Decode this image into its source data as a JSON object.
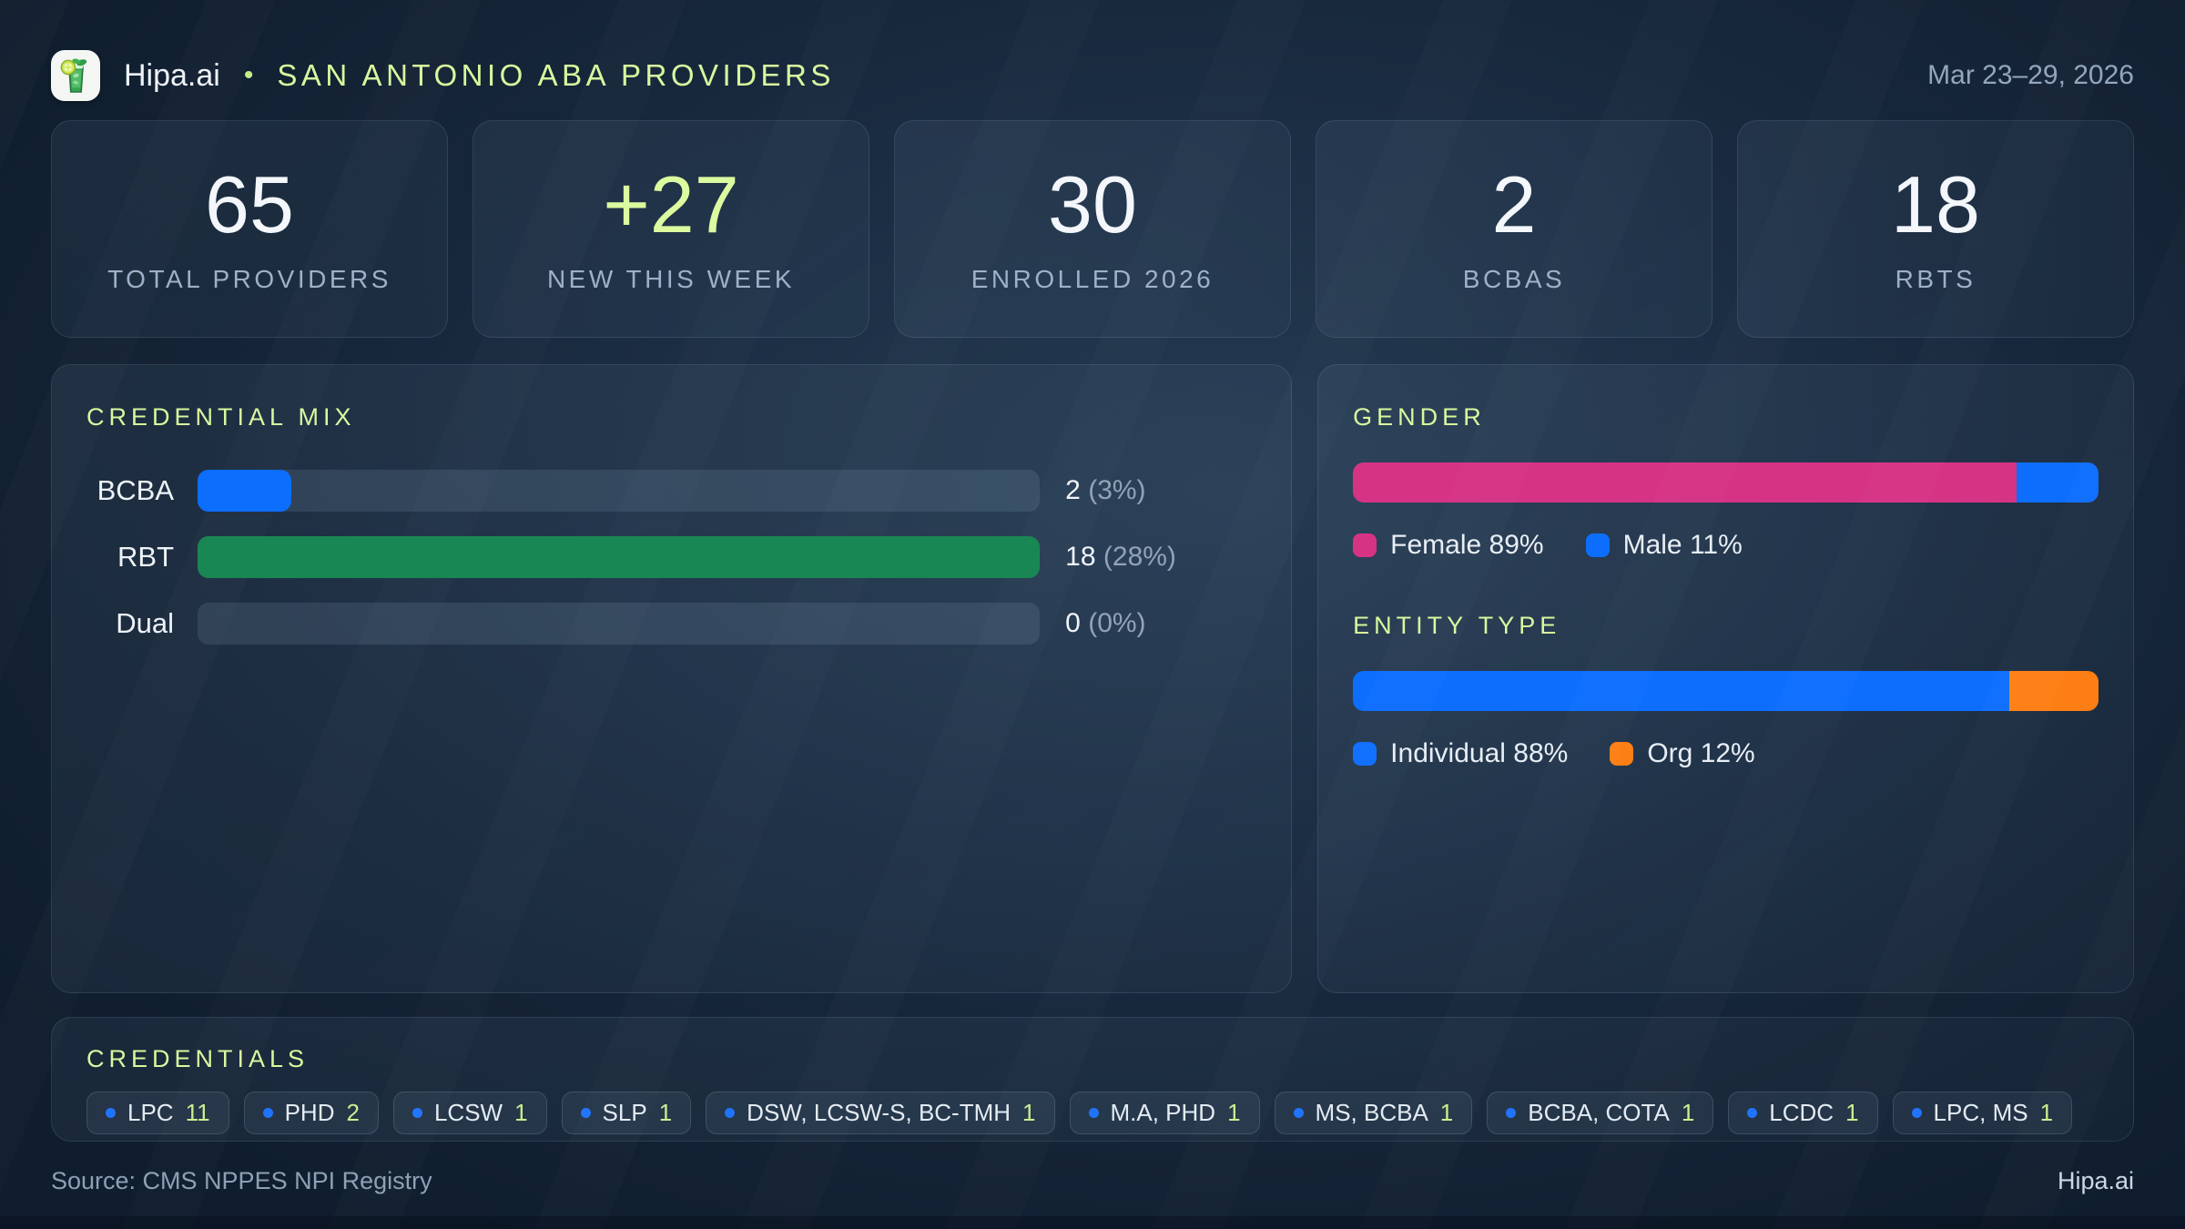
{
  "theme": {
    "accent_lime": "#d9f89e",
    "blue": "#0d6efd",
    "green": "#198754",
    "pink": "#d63384",
    "orange": "#fd7e14"
  },
  "header": {
    "brand": "Hipa.ai",
    "separator": "•",
    "title": "SAN ANTONIO ABA PROVIDERS",
    "date_range": "Mar 23–29, 2026",
    "logo_icon": "mojito-glass-icon"
  },
  "stats": [
    {
      "value": "65",
      "label": "TOTAL PROVIDERS"
    },
    {
      "value": "+27",
      "label": "NEW THIS WEEK",
      "accent": true
    },
    {
      "value": "30",
      "label": "ENROLLED 2026"
    },
    {
      "value": "2",
      "label": "BCBAS"
    },
    {
      "value": "18",
      "label": "RBTS"
    }
  ],
  "credential_mix": {
    "title": "CREDENTIAL MIX",
    "rows": [
      {
        "label": "BCBA",
        "count": "2",
        "pct": "(3%)",
        "bar_pct": 11.1,
        "color": "#0d6efd"
      },
      {
        "label": "RBT",
        "count": "18",
        "pct": "(28%)",
        "bar_pct": 100,
        "color": "#198754"
      },
      {
        "label": "Dual",
        "count": "0",
        "pct": "(0%)",
        "bar_pct": 0,
        "color": "#0d6efd"
      }
    ]
  },
  "gender": {
    "title": "GENDER",
    "segments": [
      {
        "name": "Female",
        "pct": 89,
        "color": "#d63384"
      },
      {
        "name": "Male",
        "pct": 11,
        "color": "#0d6efd"
      }
    ],
    "legend": [
      "Female 89%",
      "Male 11%"
    ]
  },
  "entity_type": {
    "title": "ENTITY TYPE",
    "segments": [
      {
        "name": "Individual",
        "pct": 88,
        "color": "#0d6efd"
      },
      {
        "name": "Org",
        "pct": 12,
        "color": "#fd7e14"
      }
    ],
    "legend": [
      "Individual 88%",
      "Org 12%"
    ]
  },
  "credentials": {
    "title": "CREDENTIALS",
    "chips": [
      {
        "label": "LPC",
        "count": "11"
      },
      {
        "label": "PHD",
        "count": "2"
      },
      {
        "label": "LCSW",
        "count": "1"
      },
      {
        "label": "SLP",
        "count": "1"
      },
      {
        "label": "DSW, LCSW-S, BC-TMH",
        "count": "1"
      },
      {
        "label": "M.A, PHD",
        "count": "1"
      },
      {
        "label": "MS, BCBA",
        "count": "1"
      },
      {
        "label": "BCBA, COTA",
        "count": "1"
      },
      {
        "label": "LCDC",
        "count": "1"
      },
      {
        "label": "LPC, MS",
        "count": "1"
      }
    ]
  },
  "footer": {
    "source": "Source: CMS NPPES NPI Registry",
    "brand": "Hipa.ai"
  },
  "chart_data": [
    {
      "type": "bar",
      "orientation": "horizontal",
      "title": "CREDENTIAL MIX",
      "categories": [
        "BCBA",
        "RBT",
        "Dual"
      ],
      "values": [
        2,
        18,
        0
      ],
      "percent_of_total": [
        3,
        28,
        0
      ],
      "value_labels": [
        "2 (3%)",
        "18 (28%)",
        "0 (0%)"
      ],
      "colors": [
        "#0d6efd",
        "#198754",
        "#0d6efd"
      ],
      "xlim": [
        0,
        18
      ],
      "grid": false,
      "legend_position": "none"
    },
    {
      "type": "bar",
      "subtype": "stacked-100pct",
      "title": "GENDER",
      "series": [
        {
          "name": "Female",
          "values": [
            89
          ],
          "color": "#d63384"
        },
        {
          "name": "Male",
          "values": [
            11
          ],
          "color": "#0d6efd"
        }
      ],
      "legend_position": "bottom"
    },
    {
      "type": "bar",
      "subtype": "stacked-100pct",
      "title": "ENTITY TYPE",
      "series": [
        {
          "name": "Individual",
          "values": [
            88
          ],
          "color": "#0d6efd"
        },
        {
          "name": "Org",
          "values": [
            12
          ],
          "color": "#fd7e14"
        }
      ],
      "legend_position": "bottom"
    }
  ]
}
